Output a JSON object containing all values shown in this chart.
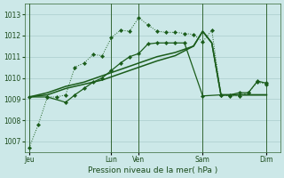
{
  "background_color": "#cce8e8",
  "grid_color": "#aacccc",
  "line_color": "#1a5c1a",
  "title": "Pression niveau de la mer( hPa )",
  "xlabel_ticks": [
    "Jeu",
    "Lun",
    "Ven",
    "Sam",
    "Dim"
  ],
  "xlabel_tick_positions": [
    0,
    9,
    12,
    19,
    26
  ],
  "ylim": [
    1006.5,
    1013.5
  ],
  "yticks": [
    1007,
    1008,
    1009,
    1010,
    1011,
    1012,
    1013
  ],
  "xlim": [
    -0.5,
    27.5
  ],
  "series1_x": [
    0,
    1,
    2,
    3,
    4,
    5,
    6,
    7,
    8,
    9,
    10,
    11,
    12,
    13,
    14,
    15,
    16,
    17,
    18,
    19,
    20,
    21,
    22,
    23,
    24,
    25,
    26
  ],
  "series1_y": [
    1006.7,
    1007.8,
    1009.1,
    1009.1,
    1009.2,
    1010.5,
    1010.7,
    1011.1,
    1011.05,
    1011.9,
    1012.25,
    1012.2,
    1012.85,
    1012.5,
    1012.2,
    1012.15,
    1012.15,
    1012.1,
    1012.05,
    1011.7,
    1012.25,
    1009.2,
    1009.15,
    1009.15,
    1009.3,
    1009.8,
    1009.7
  ],
  "series2_x": [
    0,
    2,
    4,
    5,
    6,
    7,
    8,
    9,
    10,
    11,
    12,
    13,
    14,
    15,
    16,
    17,
    19,
    21,
    22,
    23,
    24,
    25,
    26
  ],
  "series2_y": [
    1009.1,
    1009.1,
    1008.85,
    1009.2,
    1009.5,
    1009.8,
    1010.0,
    1010.35,
    1010.7,
    1011.0,
    1011.15,
    1011.6,
    1011.65,
    1011.65,
    1011.65,
    1011.65,
    1009.15,
    1009.2,
    1009.2,
    1009.3,
    1009.3,
    1009.85,
    1009.75
  ],
  "series3_x": [
    0,
    2,
    4,
    6,
    8,
    10,
    12,
    14,
    16,
    18,
    19,
    20,
    21,
    22,
    23,
    24,
    25,
    26
  ],
  "series3_y": [
    1009.1,
    1009.2,
    1009.5,
    1009.7,
    1009.9,
    1010.2,
    1010.5,
    1010.8,
    1011.05,
    1011.5,
    1012.2,
    1011.65,
    1009.2,
    1009.2,
    1009.2,
    1009.2,
    1009.2,
    1009.2
  ],
  "series4_x": [
    0,
    2,
    4,
    6,
    8,
    10,
    12,
    14,
    16,
    18,
    19,
    20,
    21,
    22,
    23,
    24,
    25,
    26
  ],
  "series4_y": [
    1009.1,
    1009.3,
    1009.6,
    1009.8,
    1010.1,
    1010.4,
    1010.7,
    1011.0,
    1011.2,
    1011.5,
    1012.2,
    1011.65,
    1009.2,
    1009.2,
    1009.2,
    1009.2,
    1009.2,
    1009.2
  ]
}
